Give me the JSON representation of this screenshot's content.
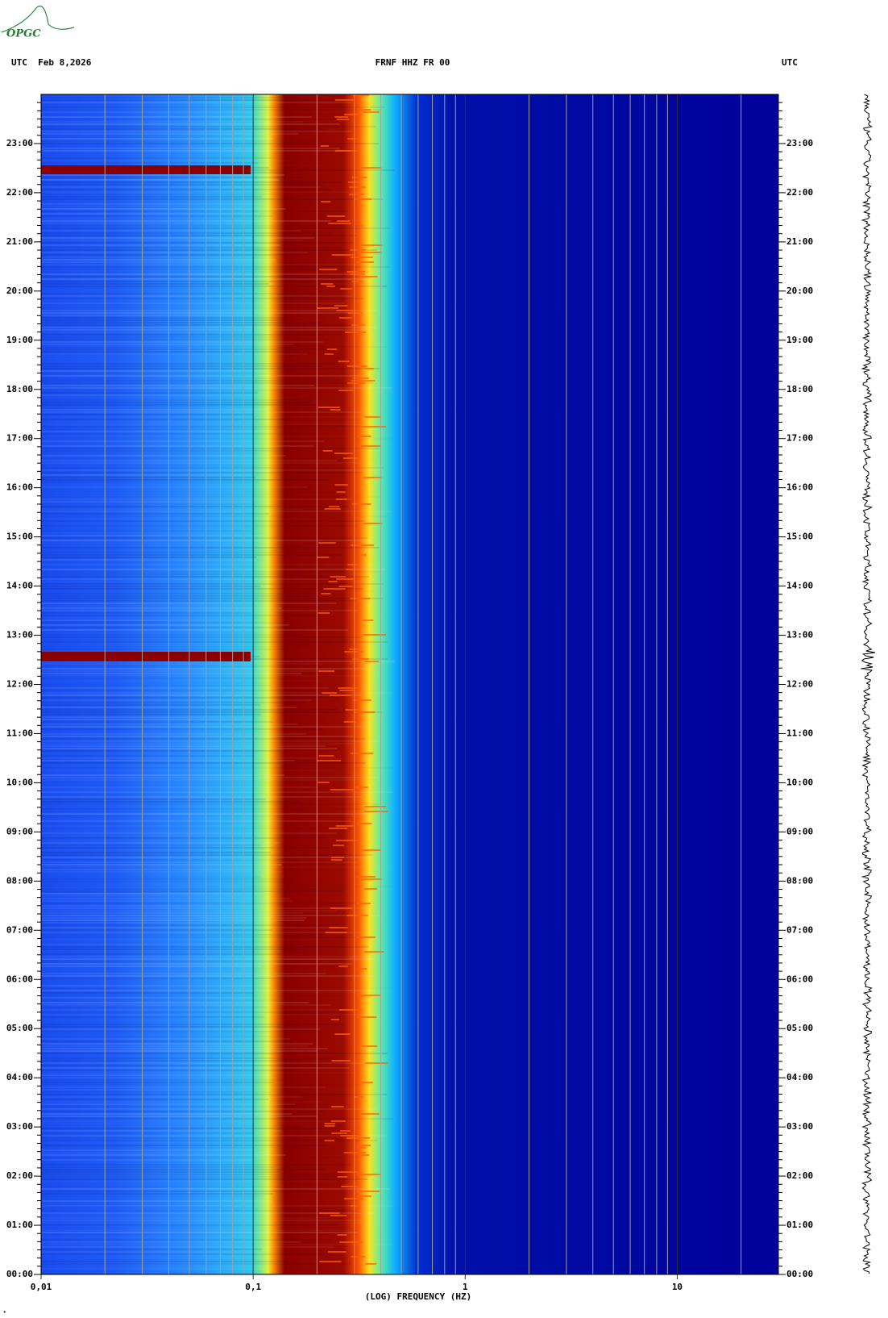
{
  "header": {
    "logo": "OPGC",
    "left": "UTC  Feb 8,2026",
    "center": "FRNF HHZ FR 00",
    "right": "UTC"
  },
  "chart_data": {
    "type": "spectrogram",
    "x_label": "(LOG) FREQUENCY (HZ)",
    "xscale": "log",
    "xlim": [
      0.01,
      30
    ],
    "xticks": [
      {
        "value": 0.01,
        "label": "0,01"
      },
      {
        "value": 0.1,
        "label": "0,1"
      },
      1,
      10
    ],
    "ylim": [
      0,
      24
    ],
    "yticks": [
      {
        "value": 0,
        "label": "00:00"
      },
      {
        "value": 1,
        "label": "01:00"
      },
      {
        "value": 2,
        "label": "02:00"
      },
      {
        "value": 3,
        "label": "03:00"
      },
      {
        "value": 4,
        "label": "04:00"
      },
      {
        "value": 5,
        "label": "05:00"
      },
      {
        "value": 6,
        "label": "06:00"
      },
      {
        "value": 7,
        "label": "07:00"
      },
      {
        "value": 8,
        "label": "08:00"
      },
      {
        "value": 9,
        "label": "09:00"
      },
      {
        "value": 10,
        "label": "10:00"
      },
      {
        "value": 11,
        "label": "11:00"
      },
      {
        "value": 12,
        "label": "12:00"
      },
      {
        "value": 13,
        "label": "13:00"
      },
      {
        "value": 14,
        "label": "14:00"
      },
      {
        "value": 15,
        "label": "15:00"
      },
      {
        "value": 16,
        "label": "16:00"
      },
      {
        "value": 17,
        "label": "17:00"
      },
      {
        "value": 18,
        "label": "18:00"
      },
      {
        "value": 19,
        "label": "19:00"
      },
      {
        "value": 20,
        "label": "20:00"
      },
      {
        "value": 21,
        "label": "21:00"
      },
      {
        "value": 22,
        "label": "22:00"
      },
      {
        "value": 23,
        "label": "23:00"
      }
    ]
  }
}
